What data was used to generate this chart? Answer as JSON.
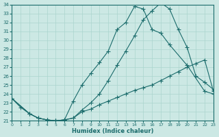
{
  "xlabel": "Humidex (Indice chaleur)",
  "bg_color": "#cce8e4",
  "line_color": "#1a6b6b",
  "grid_color": "#aad4ce",
  "xlim": [
    0,
    23
  ],
  "ylim": [
    21,
    34
  ],
  "xticks": [
    0,
    1,
    2,
    3,
    4,
    5,
    6,
    7,
    8,
    9,
    10,
    11,
    12,
    13,
    14,
    15,
    16,
    17,
    18,
    19,
    20,
    21,
    22,
    23
  ],
  "yticks": [
    21,
    22,
    23,
    24,
    25,
    26,
    27,
    28,
    29,
    30,
    31,
    32,
    33,
    34
  ],
  "line1_x": [
    0,
    1,
    2,
    3,
    4,
    5,
    6,
    7,
    8,
    9,
    10,
    11,
    12,
    13,
    14,
    15,
    16,
    17,
    18,
    19,
    20,
    21,
    22,
    23
  ],
  "line1_y": [
    23.5,
    22.5,
    21.8,
    21.3,
    21.1,
    21.0,
    21.1,
    21.3,
    22.2,
    23.0,
    24.0,
    25.5,
    27.2,
    28.8,
    30.5,
    32.3,
    33.3,
    34.2,
    33.5,
    31.2,
    29.2,
    26.0,
    25.3,
    24.5
  ],
  "line2_x": [
    0,
    2,
    3,
    4,
    5,
    6,
    7,
    8,
    9,
    10,
    11,
    12,
    13,
    14,
    15,
    16,
    17,
    18,
    20,
    22,
    23
  ],
  "line2_y": [
    23.5,
    21.8,
    21.3,
    21.1,
    21.0,
    21.1,
    23.2,
    25.0,
    26.3,
    27.5,
    28.8,
    31.2,
    32.0,
    33.8,
    33.5,
    31.2,
    30.8,
    29.5,
    27.2,
    24.3,
    24.0
  ],
  "line3_x": [
    0,
    2,
    3,
    4,
    5,
    6,
    7,
    8,
    9,
    10,
    11,
    12,
    13,
    14,
    15,
    16,
    17,
    18,
    19,
    20,
    21,
    22,
    23
  ],
  "line3_y": [
    23.5,
    21.8,
    21.3,
    21.1,
    21.0,
    21.1,
    21.3,
    22.0,
    22.3,
    22.8,
    23.2,
    23.6,
    24.0,
    24.4,
    24.7,
    25.0,
    25.5,
    26.0,
    26.5,
    27.0,
    27.4,
    27.8,
    24.3
  ]
}
